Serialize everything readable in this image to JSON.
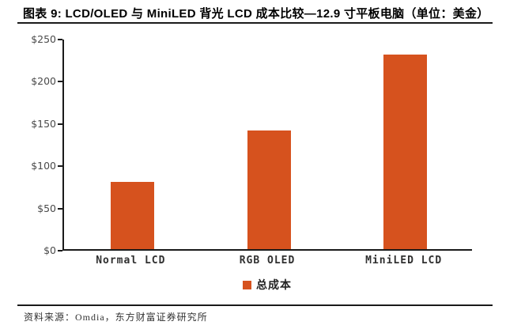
{
  "header": {
    "title": "图表 9: LCD/OLED 与 MiniLED 背光 LCD 成本比较—12.9 寸平板电脑（单位：美金）"
  },
  "chart_data": {
    "type": "bar",
    "categories": [
      "Normal LCD",
      "RGB OLED",
      "MiniLED LCD"
    ],
    "values": [
      80,
      140,
      230
    ],
    "series": [
      {
        "name": "总成本",
        "values": [
          80,
          140,
          230
        ]
      }
    ],
    "title": "LCD/OLED 与 MiniLED 背光 LCD 成本比较—12.9 寸平板电脑",
    "xlabel": "",
    "ylabel": "",
    "unit": "美金",
    "ylim": [
      0,
      250
    ],
    "ytick_step": 50,
    "ytick_labels": [
      "$0",
      "$50",
      "$100",
      "$150",
      "$200",
      "$250"
    ],
    "grid": false,
    "legend_position": "bottom",
    "bar_color": "#D6521E"
  },
  "legend": {
    "label": "总成本",
    "marker_color": "#D6521E"
  },
  "footer": {
    "source": "资料来源：Omdia，东方财富证券研究所"
  },
  "colors": {
    "bar": "#D6521E",
    "axis_line": "#1a1a1a",
    "ytick_label": "#4a4a4a",
    "category_label": "#303030"
  }
}
